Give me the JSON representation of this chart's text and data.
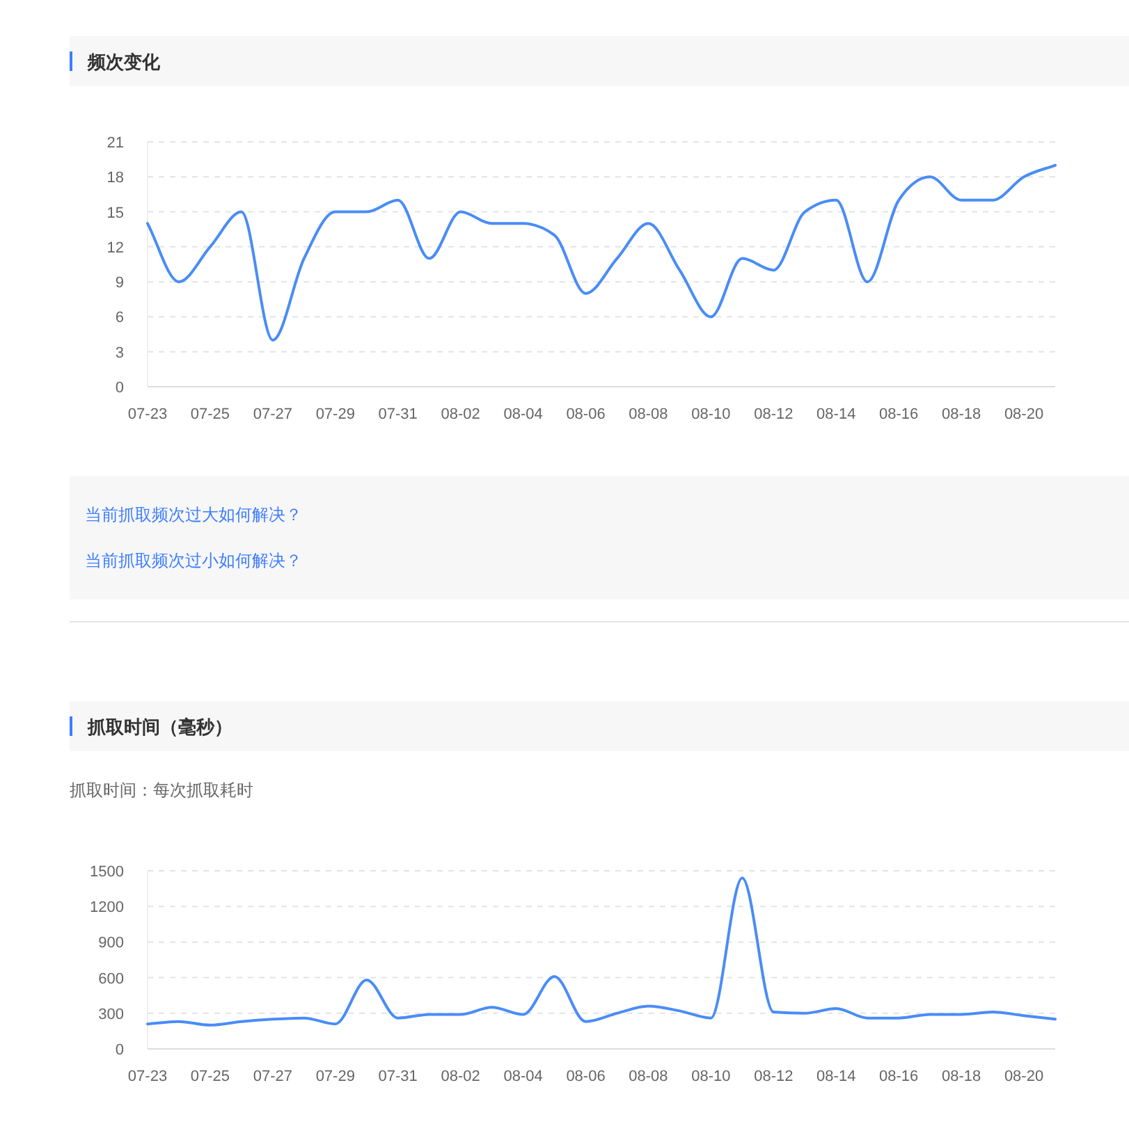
{
  "chart_data": [
    {
      "type": "line",
      "title": "频次变化",
      "categories": [
        "07-23",
        null,
        "07-25",
        null,
        "07-27",
        null,
        "07-29",
        null,
        "07-31",
        null,
        "08-02",
        null,
        "08-04",
        null,
        "08-06",
        null,
        "08-08",
        null,
        "08-10",
        null,
        "08-12",
        null,
        "08-14",
        null,
        "08-16",
        null,
        "08-18",
        null,
        "08-20",
        null
      ],
      "values": [
        14,
        9,
        12,
        15,
        4,
        11,
        15,
        15,
        16,
        11,
        15,
        14,
        14,
        13,
        8,
        11,
        14,
        10,
        6,
        11,
        10,
        15,
        16,
        9,
        16,
        18,
        16,
        16,
        18,
        19
      ],
      "color": "#4a8cf7",
      "ylim": [
        0,
        21
      ],
      "yticks": [
        0,
        3,
        6,
        9,
        12,
        15,
        18,
        21
      ],
      "grid": "y",
      "annotations": [
        "当前抓取频次过大如何解决？",
        "当前抓取频次过小如何解决？"
      ]
    },
    {
      "type": "line",
      "title": "抓取时间（毫秒）",
      "categories": [
        "07-23",
        null,
        "07-25",
        null,
        "07-27",
        null,
        "07-29",
        null,
        "07-31",
        null,
        "08-02",
        null,
        "08-04",
        null,
        "08-06",
        null,
        "08-08",
        null,
        "08-10",
        null,
        "08-12",
        null,
        "08-14",
        null,
        "08-16",
        null,
        "08-18",
        null,
        "08-20",
        null
      ],
      "values": [
        210,
        230,
        200,
        230,
        250,
        260,
        210,
        580,
        260,
        290,
        290,
        350,
        290,
        610,
        230,
        300,
        360,
        320,
        260,
        1440,
        310,
        300,
        340,
        260,
        260,
        290,
        290,
        310,
        280,
        250
      ],
      "color": "#4a8cf7",
      "ylim": [
        0,
        1500
      ],
      "yticks": [
        0,
        300,
        600,
        900,
        1200,
        1500
      ],
      "grid": "y",
      "annotations": [
        "抓取时间：每次抓取耗时"
      ]
    }
  ]
}
